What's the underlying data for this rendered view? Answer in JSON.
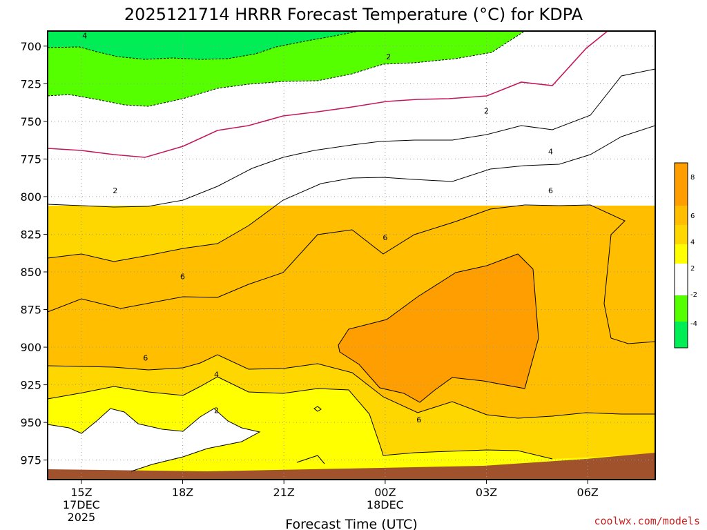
{
  "chart_data": {
    "type": "contour",
    "title": "2025121714 HRRR Forecast Temperature (°C) for KDPA",
    "xlabel": "Forecast Time (UTC)",
    "ylabel": "",
    "x_ticks": [
      {
        "label": "15Z",
        "sub1": "17DEC",
        "sub2": "2025"
      },
      {
        "label": "18Z",
        "sub1": "",
        "sub2": ""
      },
      {
        "label": "21Z",
        "sub1": "",
        "sub2": ""
      },
      {
        "label": "00Z",
        "sub1": "18DEC",
        "sub2": ""
      },
      {
        "label": "03Z",
        "sub1": "",
        "sub2": ""
      },
      {
        "label": "06Z",
        "sub1": "",
        "sub2": ""
      }
    ],
    "x_range_hours": [
      14,
      32
    ],
    "y_ticks": [
      700,
      725,
      750,
      775,
      800,
      825,
      850,
      875,
      900,
      925,
      950,
      975
    ],
    "y_range_hPa": [
      690,
      988
    ],
    "grid": true,
    "contour_levels": [
      -4,
      -2,
      2,
      4,
      6,
      8
    ],
    "contour_labels": [
      {
        "text": "4",
        "hour": 15.1,
        "p": 693
      },
      {
        "text": "2",
        "hour": 24.1,
        "p": 707
      },
      {
        "text": "2",
        "hour": 27.0,
        "p": 743
      },
      {
        "text": "4",
        "hour": 28.9,
        "p": 770
      },
      {
        "text": "6",
        "hour": 28.9,
        "p": 796
      },
      {
        "text": "2",
        "hour": 16.0,
        "p": 796
      },
      {
        "text": "6",
        "hour": 24.0,
        "p": 827
      },
      {
        "text": "6",
        "hour": 18.0,
        "p": 853
      },
      {
        "text": "6",
        "hour": 16.9,
        "p": 907
      },
      {
        "text": "4",
        "hour": 19.0,
        "p": 918
      },
      {
        "text": "2",
        "hour": 19.0,
        "p": 942
      },
      {
        "text": "6",
        "hour": 25.0,
        "p": 948
      }
    ],
    "colorbar": {
      "labels": [
        "8",
        "6",
        "4",
        "2",
        "-2",
        "-4"
      ],
      "colors": {
        "c8": "#ff9e00",
        "c6": "#ffbe00",
        "c4": "#ffd700",
        "c2": "#ffff00",
        "c0": "#ffffff",
        "cm2": "#55ff00",
        "cm4": "#00ee55"
      }
    },
    "ground_color": "#a0522d"
  },
  "credit": "coolwx.com/models",
  "credit_color": "#cc2222"
}
